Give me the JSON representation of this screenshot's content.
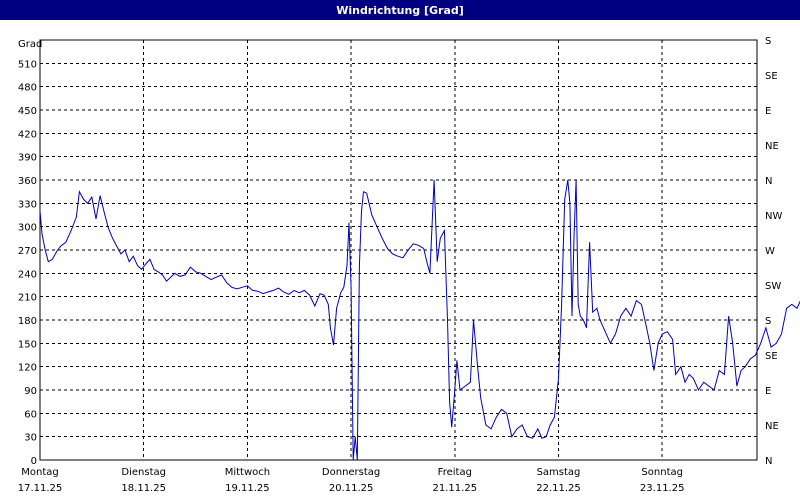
{
  "window": {
    "title": "Windrichtung [Grad]"
  },
  "chart_data": {
    "type": "line",
    "title": "Windrichtung [Grad]",
    "ylabel": "Grad",
    "ylim": [
      0,
      540
    ],
    "yticks": [
      0,
      30,
      60,
      90,
      120,
      150,
      180,
      210,
      240,
      270,
      300,
      330,
      360,
      390,
      420,
      450,
      480,
      510
    ],
    "right_axis": {
      "labels": [
        {
          "label": "N",
          "value": 0
        },
        {
          "label": "NE",
          "value": 45
        },
        {
          "label": "E",
          "value": 90
        },
        {
          "label": "SE",
          "value": 135
        },
        {
          "label": "S",
          "value": 180
        },
        {
          "label": "SW",
          "value": 225
        },
        {
          "label": "W",
          "value": 270
        },
        {
          "label": "NW",
          "value": 315
        },
        {
          "label": "N",
          "value": 360
        },
        {
          "label": "NE",
          "value": 405
        },
        {
          "label": "E",
          "value": 450
        },
        {
          "label": "SE",
          "value": 495
        },
        {
          "label": "S",
          "value": 540
        }
      ]
    },
    "xlim": [
      0,
      7
    ],
    "x_ticks": [
      {
        "day": "Montag",
        "date": "17.11.25",
        "x": 0
      },
      {
        "day": "Dienstag",
        "date": "18.11.25",
        "x": 1
      },
      {
        "day": "Mittwoch",
        "date": "19.11.25",
        "x": 2
      },
      {
        "day": "Donnerstag",
        "date": "20.11.25",
        "x": 3
      },
      {
        "day": "Freitag",
        "date": "21.11.25",
        "x": 4
      },
      {
        "day": "Samstag",
        "date": "22.11.25",
        "x": 5
      },
      {
        "day": "Sonntag",
        "date": "23.11.25",
        "x": 6
      }
    ],
    "grid": true,
    "color": "#0000c0",
    "series": [
      {
        "name": "",
        "points": [
          [
            0.0,
            320
          ],
          [
            0.02,
            290
          ],
          [
            0.05,
            270
          ],
          [
            0.08,
            255
          ],
          [
            0.12,
            258
          ],
          [
            0.16,
            268
          ],
          [
            0.2,
            275
          ],
          [
            0.25,
            280
          ],
          [
            0.3,
            295
          ],
          [
            0.35,
            312
          ],
          [
            0.38,
            345
          ],
          [
            0.42,
            335
          ],
          [
            0.46,
            330
          ],
          [
            0.5,
            338
          ],
          [
            0.54,
            310
          ],
          [
            0.58,
            340
          ],
          [
            0.62,
            318
          ],
          [
            0.66,
            298
          ],
          [
            0.7,
            285
          ],
          [
            0.74,
            275
          ],
          [
            0.78,
            265
          ],
          [
            0.82,
            270
          ],
          [
            0.86,
            255
          ],
          [
            0.9,
            262
          ],
          [
            0.94,
            250
          ],
          [
            0.98,
            245
          ],
          [
            1.02,
            252
          ],
          [
            1.06,
            258
          ],
          [
            1.1,
            245
          ],
          [
            1.14,
            242
          ],
          [
            1.18,
            238
          ],
          [
            1.22,
            230
          ],
          [
            1.26,
            235
          ],
          [
            1.3,
            240
          ],
          [
            1.35,
            236
          ],
          [
            1.4,
            238
          ],
          [
            1.45,
            248
          ],
          [
            1.5,
            242
          ],
          [
            1.55,
            240
          ],
          [
            1.6,
            236
          ],
          [
            1.65,
            232
          ],
          [
            1.7,
            235
          ],
          [
            1.75,
            238
          ],
          [
            1.8,
            228
          ],
          [
            1.85,
            222
          ],
          [
            1.9,
            220
          ],
          [
            1.95,
            222
          ],
          [
            2.0,
            224
          ],
          [
            2.05,
            218
          ],
          [
            2.1,
            217
          ],
          [
            2.15,
            214
          ],
          [
            2.2,
            216
          ],
          [
            2.25,
            218
          ],
          [
            2.3,
            221
          ],
          [
            2.35,
            216
          ],
          [
            2.4,
            213
          ],
          [
            2.45,
            218
          ],
          [
            2.5,
            215
          ],
          [
            2.55,
            218
          ],
          [
            2.6,
            212
          ],
          [
            2.65,
            198
          ],
          [
            2.7,
            214
          ],
          [
            2.74,
            212
          ],
          [
            2.78,
            200
          ],
          [
            2.8,
            170
          ],
          [
            2.83,
            148
          ],
          [
            2.86,
            195
          ],
          [
            2.9,
            215
          ],
          [
            2.93,
            222
          ],
          [
            2.96,
            250
          ],
          [
            2.98,
            305
          ],
          [
            3.0,
            220
          ],
          [
            3.02,
            0
          ],
          [
            3.04,
            30
          ],
          [
            3.06,
            0
          ],
          [
            3.08,
            250
          ],
          [
            3.1,
            320
          ],
          [
            3.12,
            345
          ],
          [
            3.15,
            343
          ],
          [
            3.2,
            315
          ],
          [
            3.25,
            300
          ],
          [
            3.3,
            285
          ],
          [
            3.35,
            272
          ],
          [
            3.4,
            265
          ],
          [
            3.45,
            262
          ],
          [
            3.5,
            260
          ],
          [
            3.55,
            270
          ],
          [
            3.6,
            278
          ],
          [
            3.65,
            276
          ],
          [
            3.7,
            272
          ],
          [
            3.73,
            255
          ],
          [
            3.76,
            240
          ],
          [
            3.8,
            360
          ],
          [
            3.83,
            255
          ],
          [
            3.86,
            285
          ],
          [
            3.9,
            295
          ],
          [
            3.93,
            180
          ],
          [
            3.95,
            75
          ],
          [
            3.97,
            42
          ],
          [
            4.0,
            90
          ],
          [
            4.02,
            128
          ],
          [
            4.05,
            90
          ],
          [
            4.1,
            95
          ],
          [
            4.15,
            100
          ],
          [
            4.18,
            180
          ],
          [
            4.22,
            120
          ],
          [
            4.25,
            80
          ],
          [
            4.3,
            45
          ],
          [
            4.35,
            40
          ],
          [
            4.4,
            55
          ],
          [
            4.45,
            65
          ],
          [
            4.5,
            60
          ],
          [
            4.55,
            30
          ],
          [
            4.6,
            40
          ],
          [
            4.65,
            45
          ],
          [
            4.7,
            30
          ],
          [
            4.75,
            28
          ],
          [
            4.8,
            40
          ],
          [
            4.84,
            28
          ],
          [
            4.88,
            30
          ],
          [
            4.92,
            45
          ],
          [
            4.96,
            55
          ],
          [
            5.0,
            105
          ],
          [
            5.03,
            200
          ],
          [
            5.06,
            335
          ],
          [
            5.09,
            360
          ],
          [
            5.11,
            330
          ],
          [
            5.13,
            185
          ],
          [
            5.15,
            290
          ],
          [
            5.17,
            360
          ],
          [
            5.19,
            200
          ],
          [
            5.21,
            185
          ],
          [
            5.24,
            180
          ],
          [
            5.27,
            170
          ],
          [
            5.3,
            280
          ],
          [
            5.33,
            190
          ],
          [
            5.37,
            195
          ],
          [
            5.4,
            180
          ],
          [
            5.45,
            165
          ],
          [
            5.5,
            150
          ],
          [
            5.55,
            162
          ],
          [
            5.6,
            185
          ],
          [
            5.65,
            195
          ],
          [
            5.7,
            185
          ],
          [
            5.75,
            205
          ],
          [
            5.8,
            200
          ],
          [
            5.85,
            170
          ],
          [
            5.88,
            150
          ],
          [
            5.92,
            115
          ],
          [
            5.96,
            150
          ],
          [
            6.0,
            162
          ],
          [
            6.05,
            165
          ],
          [
            6.1,
            155
          ],
          [
            6.13,
            110
          ],
          [
            6.18,
            120
          ],
          [
            6.22,
            100
          ],
          [
            6.26,
            110
          ],
          [
            6.3,
            105
          ],
          [
            6.35,
            90
          ],
          [
            6.4,
            100
          ],
          [
            6.45,
            95
          ],
          [
            6.5,
            90
          ],
          [
            6.55,
            115
          ],
          [
            6.6,
            110
          ],
          [
            6.64,
            185
          ],
          [
            6.68,
            150
          ],
          [
            6.72,
            95
          ],
          [
            6.76,
            115
          ],
          [
            6.8,
            120
          ],
          [
            6.85,
            130
          ],
          [
            6.9,
            135
          ],
          [
            6.95,
            150
          ],
          [
            7.0,
            170
          ],
          [
            7.05,
            145
          ],
          [
            7.1,
            150
          ],
          [
            7.15,
            162
          ],
          [
            7.2,
            195
          ],
          [
            7.25,
            200
          ],
          [
            7.3,
            195
          ],
          [
            7.35,
            210
          ],
          [
            7.4,
            212
          ]
        ]
      }
    ]
  }
}
